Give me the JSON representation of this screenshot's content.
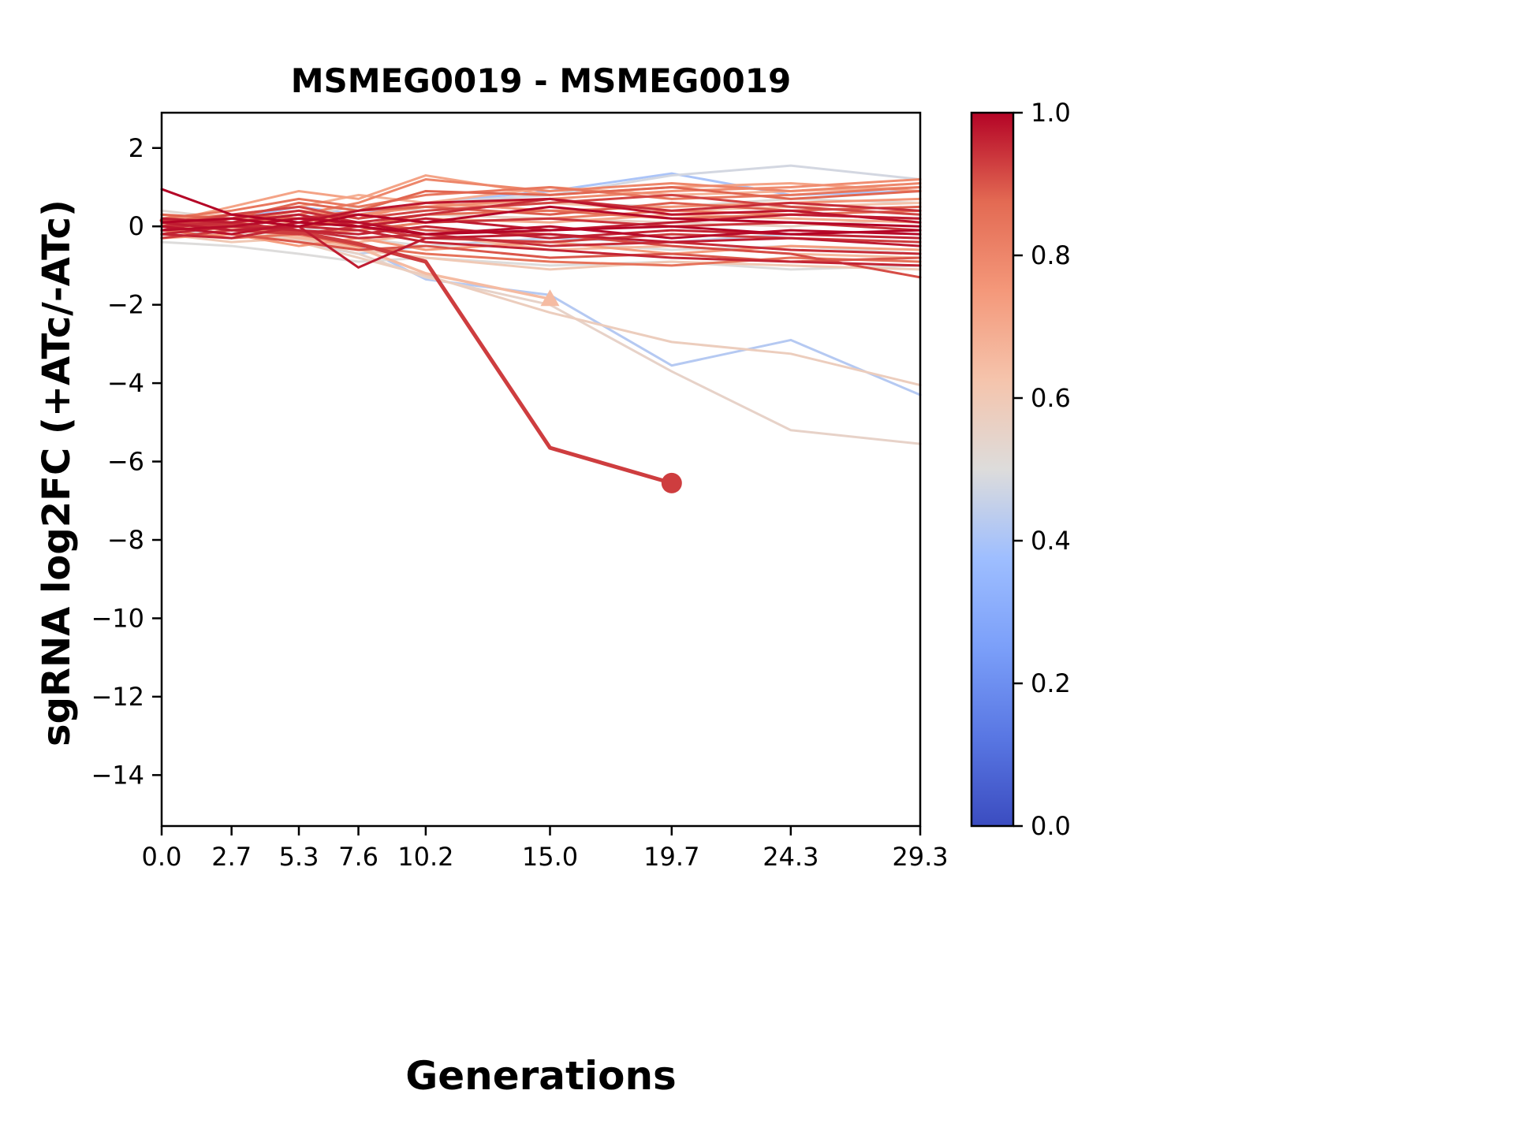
{
  "chart_data": {
    "type": "line",
    "title": "MSMEG0019 - MSMEG0019",
    "xlabel": "Generations",
    "ylabel": "sgRNA log2FC (+ATc/-ATc)",
    "grid": false,
    "legend": "colorbar-right",
    "x": [
      0.0,
      2.7,
      5.3,
      7.6,
      10.2,
      15.0,
      19.7,
      24.3,
      29.3
    ],
    "xlim": [
      0.0,
      29.3
    ],
    "ylim": [
      -15.3,
      2.9
    ],
    "xtick_labels": [
      "0.0",
      "2.7",
      "5.3",
      "7.6",
      "10.2",
      "15.0",
      "19.7",
      "24.3",
      "29.3"
    ],
    "ytick_values": [
      2,
      0,
      -2,
      -4,
      -6,
      -8,
      -10,
      -12,
      -14
    ],
    "ytick_labels": [
      "2",
      "0",
      "−2",
      "−4",
      "−6",
      "−8",
      "−10",
      "−12",
      "−14"
    ],
    "colormap": {
      "name": "coolwarm",
      "stops": [
        {
          "offset": 0.0,
          "color": "#3b4cc0"
        },
        {
          "offset": 0.125,
          "color": "#5977e3"
        },
        {
          "offset": 0.25,
          "color": "#7b9ff9"
        },
        {
          "offset": 0.375,
          "color": "#9ebeff"
        },
        {
          "offset": 0.5,
          "color": "#dddcdb"
        },
        {
          "offset": 0.625,
          "color": "#f5c4ac"
        },
        {
          "offset": 0.75,
          "color": "#f4987a"
        },
        {
          "offset": 0.875,
          "color": "#e36a53"
        },
        {
          "offset": 1.0,
          "color": "#b40426"
        }
      ]
    },
    "colorbar": {
      "min": 0.0,
      "max": 1.0,
      "tick_values": [
        1.0,
        0.8,
        0.6,
        0.4,
        0.2,
        0.0
      ],
      "ticks": [
        "1.0",
        "0.8",
        "0.6",
        "0.4",
        "0.2",
        "0.0"
      ]
    },
    "series": [
      {
        "color_value": 0.93,
        "linewidth": 5,
        "end_marker": "circle",
        "y": [
          0.15,
          0.05,
          -0.15,
          -0.45,
          -0.9,
          -5.65,
          -6.55
        ]
      },
      {
        "color_value": 0.65,
        "linewidth": 3.5,
        "end_marker": "triangle",
        "y": [
          0.05,
          -0.05,
          -0.25,
          -0.55,
          -1.2,
          -1.85
        ]
      },
      {
        "color_value": 0.42,
        "y": [
          -0.2,
          0.1,
          -0.3,
          -0.5,
          -1.35,
          -1.75,
          -3.55,
          -2.9,
          -4.3
        ]
      },
      {
        "color_value": 0.58,
        "y": [
          0.0,
          -0.1,
          -0.4,
          -0.8,
          -1.25,
          -2.2,
          -2.95,
          -3.25,
          -4.05
        ]
      },
      {
        "color_value": 0.55,
        "y": [
          -0.1,
          0.0,
          -0.35,
          -0.7,
          -1.3,
          -2.0,
          -3.7,
          -5.2,
          -5.55
        ]
      },
      {
        "color_value": 1.0,
        "y": [
          0.1,
          0.2,
          0.0,
          0.3,
          0.1,
          0.5,
          0.2,
          0.1,
          0.0
        ]
      },
      {
        "color_value": 0.99,
        "y": [
          -0.1,
          0.0,
          0.2,
          0.1,
          -0.2,
          0.0,
          -0.3,
          -0.1,
          -0.2
        ]
      },
      {
        "color_value": 0.98,
        "y": [
          0.0,
          -0.2,
          0.1,
          0.4,
          0.6,
          0.7,
          0.3,
          0.4,
          0.1
        ]
      },
      {
        "color_value": 0.97,
        "y": [
          0.2,
          0.1,
          0.3,
          0.0,
          0.2,
          -0.1,
          0.1,
          0.3,
          0.2
        ]
      },
      {
        "color_value": 0.96,
        "y": [
          -0.2,
          -0.3,
          0.0,
          -0.1,
          -0.4,
          -0.6,
          -0.8,
          -0.9,
          -1.0
        ]
      },
      {
        "color_value": 1.0,
        "y": [
          0.95,
          0.3,
          0.1,
          0.0,
          -0.2,
          -0.1,
          0.0,
          -0.2,
          -0.1
        ]
      },
      {
        "color_value": 0.95,
        "y": [
          0.0,
          0.1,
          -0.1,
          -0.3,
          -0.2,
          -0.5,
          -0.4,
          -0.6,
          -0.7
        ]
      },
      {
        "color_value": 0.94,
        "y": [
          0.1,
          0.0,
          0.2,
          0.3,
          0.1,
          0.2,
          0.0,
          0.1,
          -0.1
        ]
      },
      {
        "color_value": 0.93,
        "y": [
          -0.3,
          -0.1,
          -0.2,
          0.0,
          -0.3,
          -0.4,
          -0.2,
          -0.3,
          -0.4
        ]
      },
      {
        "color_value": 0.92,
        "y": [
          0.0,
          0.3,
          0.5,
          0.2,
          0.4,
          0.6,
          0.8,
          0.5,
          0.3
        ]
      },
      {
        "color_value": 0.91,
        "y": [
          0.2,
          -0.1,
          0.0,
          0.1,
          -0.1,
          -0.2,
          -0.5,
          -0.7,
          -1.3
        ]
      },
      {
        "color_value": 0.95,
        "y": [
          -0.1,
          0.2,
          0.4,
          0.1,
          0.3,
          0.7,
          0.4,
          0.6,
          0.4
        ]
      },
      {
        "color_value": 0.9,
        "y": [
          0.0,
          -0.2,
          -0.4,
          -0.6,
          -0.5,
          -0.8,
          -0.7,
          -0.9,
          -0.8
        ]
      },
      {
        "color_value": 0.89,
        "y": [
          0.1,
          0.3,
          0.2,
          0.4,
          0.5,
          0.3,
          0.6,
          0.4,
          0.5
        ]
      },
      {
        "color_value": 0.96,
        "y": [
          -0.2,
          0.0,
          -0.1,
          -0.2,
          0.0,
          -0.3,
          -0.1,
          -0.2,
          -0.3
        ]
      },
      {
        "color_value": 0.97,
        "y": [
          0.1,
          -0.1,
          0.0,
          -1.05,
          -0.3,
          -0.2,
          -0.4,
          -0.3,
          -0.5
        ]
      },
      {
        "color_value": 0.88,
        "y": [
          0.3,
          0.2,
          0.6,
          0.4,
          0.9,
          0.8,
          1.0,
          0.7,
          0.9
        ]
      },
      {
        "color_value": 0.86,
        "y": [
          0.0,
          0.1,
          0.2,
          0.0,
          0.3,
          0.4,
          0.2,
          0.3,
          0.4
        ]
      },
      {
        "color_value": 0.85,
        "y": [
          -0.1,
          -0.3,
          -0.2,
          -0.5,
          -0.7,
          -0.9,
          -1.0,
          -0.8,
          -0.9
        ]
      },
      {
        "color_value": 0.84,
        "y": [
          0.2,
          0.4,
          0.7,
          0.5,
          0.8,
          1.0,
          0.7,
          0.8,
          1.0
        ]
      },
      {
        "color_value": 0.82,
        "y": [
          0.1,
          0.0,
          -0.2,
          -0.1,
          0.1,
          0.2,
          0.4,
          0.3,
          0.2
        ]
      },
      {
        "color_value": 0.8,
        "y": [
          -0.2,
          0.1,
          0.3,
          0.6,
          1.2,
          0.9,
          1.1,
          0.9,
          1.1
        ]
      },
      {
        "color_value": 0.78,
        "y": [
          0.0,
          0.2,
          0.1,
          0.3,
          0.5,
          0.7,
          0.9,
          1.0,
          1.2
        ]
      },
      {
        "color_value": 0.76,
        "y": [
          0.3,
          0.1,
          0.4,
          0.2,
          0.6,
          0.4,
          0.5,
          0.6,
          0.7
        ]
      },
      {
        "color_value": 0.74,
        "y": [
          -0.3,
          -0.2,
          -0.5,
          -0.3,
          -0.6,
          -0.4,
          -0.7,
          -0.5,
          -0.6
        ]
      },
      {
        "color_value": 0.72,
        "y": [
          0.1,
          0.5,
          0.9,
          0.7,
          1.3,
          0.8,
          1.0,
          1.1,
          0.9
        ]
      },
      {
        "color_value": 0.7,
        "y": [
          0.0,
          -0.1,
          0.1,
          0.0,
          0.2,
          0.1,
          0.3,
          0.2,
          0.1
        ]
      },
      {
        "color_value": 0.68,
        "y": [
          0.2,
          0.3,
          0.5,
          0.8,
          0.6,
          1.0,
          0.8,
          0.9,
          1.0
        ]
      },
      {
        "color_value": 0.66,
        "y": [
          -0.1,
          0.0,
          -0.3,
          -0.4,
          -0.2,
          -0.6,
          -0.5,
          -0.7,
          -0.8
        ]
      },
      {
        "color_value": 0.63,
        "y": [
          0.1,
          0.2,
          0.4,
          0.3,
          0.5,
          0.6,
          0.4,
          0.5,
          0.6
        ]
      },
      {
        "color_value": 0.6,
        "y": [
          -0.2,
          -0.4,
          -0.3,
          -0.6,
          -0.8,
          -1.1,
          -0.9,
          -1.0,
          -1.1
        ]
      },
      {
        "color_value": 0.56,
        "y": [
          0.1,
          0.0,
          0.2,
          0.1,
          0.3,
          0.2,
          0.1,
          0.0,
          0.2
        ]
      },
      {
        "color_value": 0.52,
        "y": [
          0.4,
          0.2,
          0.3,
          0.5,
          0.4,
          0.6,
          0.5,
          0.7,
          0.6
        ]
      },
      {
        "color_value": 0.5,
        "y": [
          -0.1,
          -0.2,
          0.0,
          -0.3,
          -0.5,
          -0.4,
          -0.6,
          -0.5,
          -0.7
        ]
      },
      {
        "color_value": 0.48,
        "y": [
          0.2,
          0.3,
          0.1,
          0.4,
          0.6,
          0.8,
          1.3,
          1.55,
          1.2
        ]
      },
      {
        "color_value": 0.45,
        "y": [
          0.0,
          -0.1,
          -0.4,
          -0.7,
          -0.5,
          -0.3,
          -0.4,
          -0.2,
          -0.3
        ]
      },
      {
        "color_value": 0.4,
        "y": [
          0.1,
          0.2,
          0.5,
          0.3,
          0.6,
          0.9,
          1.35,
          0.8,
          0.9
        ]
      },
      {
        "color_value": 0.5,
        "y": [
          -0.4,
          -0.5,
          -0.7,
          -0.9,
          -0.8,
          -1.0,
          -0.9,
          -1.1,
          -1.0
        ]
      }
    ]
  }
}
